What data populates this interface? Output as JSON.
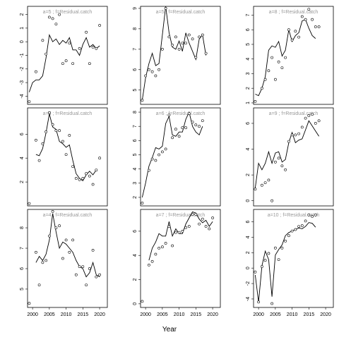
{
  "chart_data": {
    "type": "line",
    "xlabel": "Year",
    "xticks": [
      2000,
      2005,
      2010,
      2015,
      2020
    ],
    "panels": [
      {
        "label": "a=5 ; f=Residual.catch",
        "ylim": [
          -4.6,
          2.6
        ],
        "yticks": [
          -4,
          -3,
          -2,
          -1,
          0,
          1,
          2
        ],
        "x": [
          1999,
          2000,
          2001,
          2002,
          2003,
          2004,
          2005,
          2006,
          2007,
          2008,
          2009,
          2010,
          2011,
          2012,
          2013,
          2014,
          2015,
          2016,
          2017,
          2018,
          2019,
          2020,
          2021
        ],
        "obs": [
          -4.4,
          null,
          -2.2,
          null,
          0.1,
          -0.9,
          1.8,
          1.7,
          1.3,
          2.0,
          -1.6,
          -1.4,
          -0.1,
          -1.6,
          null,
          -0.5,
          null,
          0.7,
          -1.6,
          -0.4,
          -0.5,
          1.2,
          null
        ],
        "fit": [
          -3.7,
          -3.0,
          -2.8,
          -2.8,
          -2.5,
          -1.2,
          0.5,
          0.0,
          0.2,
          -0.2,
          0.1,
          -0.1,
          0.3,
          -0.6,
          -0.6,
          -1.0,
          -0.2,
          0.3,
          -0.4,
          -0.2,
          -0.5,
          -0.3,
          null
        ]
      },
      {
        "label": "a=5 ; f=Residual.catch",
        "ylim": [
          4.3,
          9.1
        ],
        "yticks": [
          5,
          6,
          7,
          8,
          9
        ],
        "x": [
          1999,
          2000,
          2001,
          2002,
          2003,
          2004,
          2005,
          2006,
          2007,
          2008,
          2009,
          2010,
          2011,
          2012,
          2013,
          2014,
          2015,
          2016,
          2017,
          2018,
          2019,
          2020,
          2021
        ],
        "obs": [
          4.5,
          5.7,
          6.0,
          5.9,
          5.7,
          6.0,
          7.0,
          9.0,
          7.6,
          7.2,
          7.6,
          7.0,
          7.3,
          7.3,
          7.7,
          7.5,
          6.6,
          7.6,
          7.7,
          6.8,
          null,
          null,
          null
        ],
        "fit": [
          4.5,
          5.6,
          6.3,
          6.8,
          6.2,
          6.3,
          7.7,
          9.1,
          7.8,
          7.1,
          7.0,
          7.4,
          6.9,
          7.8,
          7.3,
          6.9,
          6.5,
          7.5,
          7.7,
          6.7,
          null,
          null,
          null
        ]
      },
      {
        "label": "a=8 ; f=Residual.catch",
        "ylim": [
          0.9,
          7.6
        ],
        "yticks": [
          1,
          2,
          3,
          4,
          5,
          6,
          7
        ],
        "x": [
          1999,
          2000,
          2001,
          2002,
          2003,
          2004,
          2005,
          2006,
          2007,
          2008,
          2009,
          2010,
          2011,
          2012,
          2013,
          2014,
          2015,
          2016,
          2017,
          2018,
          2019,
          2020,
          2021
        ],
        "obs": [
          1.1,
          null,
          2.0,
          2.6,
          3.2,
          4.1,
          2.6,
          3.8,
          3.4,
          4.1,
          6.0,
          5.3,
          5.9,
          5.5,
          6.9,
          6.7,
          7.4,
          6.7,
          6.2,
          6.2,
          null,
          null,
          null
        ],
        "fit": [
          1.6,
          1.5,
          2.0,
          2.8,
          4.6,
          4.9,
          4.8,
          5.2,
          4.2,
          4.6,
          6.0,
          5.2,
          5.6,
          5.8,
          6.6,
          6.7,
          6.1,
          5.6,
          5.4,
          null,
          null,
          null,
          null
        ]
      },
      {
        "label": "a=4 ; f=Residual.catch",
        "ylim": [
          0.0,
          8.2
        ],
        "yticks": [
          2,
          4,
          6
        ],
        "x": [
          1999,
          2000,
          2001,
          2002,
          2003,
          2004,
          2005,
          2006,
          2007,
          2008,
          2009,
          2010,
          2011,
          2012,
          2013,
          2014,
          2015,
          2016,
          2017,
          2018,
          2019,
          2020,
          2021
        ],
        "obs": [
          0.2,
          null,
          5.5,
          3.8,
          5.2,
          6.2,
          7.8,
          6.8,
          6.3,
          6.3,
          5.4,
          4.3,
          5.9,
          3.3,
          2.3,
          2.2,
          2.3,
          2.7,
          2.5,
          1.8,
          3.0,
          4.0,
          null
        ],
        "fit": [
          1.9,
          null,
          4.3,
          4.2,
          4.8,
          6.1,
          7.7,
          6.6,
          6.4,
          5.4,
          5.2,
          4.9,
          5.1,
          3.8,
          2.7,
          2.3,
          2.1,
          2.6,
          2.9,
          2.6,
          3.0,
          null,
          null
        ]
      },
      {
        "label": "a=6 ; f=Residual.catch",
        "ylim": [
          1.4,
          8.3
        ],
        "yticks": [
          2,
          3,
          4,
          5,
          6,
          7,
          8
        ],
        "x": [
          1999,
          2000,
          2001,
          2002,
          2003,
          2004,
          2005,
          2006,
          2007,
          2008,
          2009,
          2010,
          2011,
          2012,
          2013,
          2014,
          2015,
          2016,
          2017,
          2018,
          2019,
          2020,
          2021
        ],
        "obs": [
          1.6,
          null,
          3.9,
          4.7,
          4.6,
          5.0,
          5.2,
          5.4,
          7.8,
          6.2,
          6.8,
          6.3,
          6.9,
          6.9,
          7.9,
          7.3,
          7.1,
          7.0,
          7.4,
          null,
          null,
          null,
          null
        ],
        "fit": [
          2.0,
          3.0,
          4.2,
          4.8,
          5.5,
          5.4,
          5.6,
          7.2,
          7.7,
          6.4,
          6.3,
          6.6,
          6.6,
          7.5,
          8.0,
          7.0,
          6.6,
          6.4,
          7.0,
          null,
          null,
          null,
          null
        ]
      },
      {
        "label": "a=9 ; f=Residual.catch",
        "ylim": [
          -0.4,
          7.2
        ],
        "yticks": [
          0,
          2,
          4,
          6
        ],
        "x": [
          1999,
          2000,
          2001,
          2002,
          2003,
          2004,
          2005,
          2006,
          2007,
          2008,
          2009,
          2010,
          2011,
          2012,
          2013,
          2014,
          2015,
          2016,
          2017,
          2018,
          2019,
          2020,
          2021
        ],
        "obs": [
          0.9,
          null,
          1.2,
          1.4,
          1.6,
          0.0,
          3.0,
          3.3,
          2.7,
          2.4,
          4.6,
          5.1,
          5.1,
          5.2,
          5.7,
          6.4,
          6.6,
          6.7,
          6.0,
          6.2,
          null,
          null,
          null
        ],
        "fit": [
          1.0,
          2.9,
          2.4,
          2.9,
          3.8,
          2.9,
          3.7,
          3.8,
          3.0,
          3.2,
          4.5,
          5.3,
          4.5,
          4.7,
          4.8,
          5.5,
          6.2,
          5.8,
          5.4,
          5.0,
          null,
          null,
          null
        ]
      },
      {
        "label": "a=4 ; f=Residual.catch",
        "ylim": [
          4.1,
          8.9
        ],
        "yticks": [
          5,
          6,
          7,
          8
        ],
        "x": [
          1999,
          2000,
          2001,
          2002,
          2003,
          2004,
          2005,
          2006,
          2007,
          2008,
          2009,
          2010,
          2011,
          2012,
          2013,
          2014,
          2015,
          2016,
          2017,
          2018,
          2019,
          2020,
          2021
        ],
        "obs": [
          4.3,
          null,
          6.8,
          5.2,
          6.3,
          6.4,
          7.6,
          8.8,
          8.0,
          8.1,
          6.5,
          7.4,
          6.8,
          7.4,
          5.7,
          6.1,
          6.1,
          5.2,
          6.0,
          6.9,
          5.6,
          5.7,
          null
        ],
        "fit": [
          4.9,
          null,
          6.3,
          6.6,
          6.4,
          6.7,
          7.4,
          8.7,
          7.8,
          7.0,
          7.3,
          7.2,
          7.0,
          6.8,
          6.4,
          6.1,
          6.0,
          5.6,
          5.8,
          6.3,
          5.7,
          5.6,
          null
        ],
        "fit_note": ""
      },
      {
        "label": "a=7 ; f=Residual.catch",
        "ylim": [
          -0.3,
          7.8
        ],
        "yticks": [
          0,
          2,
          4,
          6
        ],
        "x": [
          1999,
          2000,
          2001,
          2002,
          2003,
          2004,
          2005,
          2006,
          2007,
          2008,
          2009,
          2010,
          2011,
          2012,
          2013,
          2014,
          2015,
          2016,
          2017,
          2018,
          2019,
          2020,
          2021
        ],
        "obs": [
          0.2,
          null,
          3.2,
          3.5,
          4.1,
          4.6,
          4.7,
          5.0,
          6.4,
          4.8,
          5.9,
          5.9,
          6.0,
          6.3,
          6.4,
          7.4,
          7.4,
          6.6,
          7.0,
          6.4,
          6.2,
          7.1,
          null
        ],
        "fit": [
          0.9,
          null,
          3.6,
          4.6,
          5.1,
          5.8,
          5.6,
          5.6,
          6.8,
          5.6,
          6.2,
          5.8,
          5.8,
          6.6,
          7.1,
          7.6,
          7.5,
          7.0,
          6.7,
          6.9,
          6.4,
          6.8,
          null
        ]
      },
      {
        "label": "a=10 ; f=Residual.catch",
        "ylim": [
          -5.1,
          7.6
        ],
        "yticks": [
          -4,
          -2,
          0,
          2,
          4,
          6
        ],
        "x": [
          1999,
          2000,
          2001,
          2002,
          2003,
          2004,
          2005,
          2006,
          2007,
          2008,
          2009,
          2010,
          2011,
          2012,
          2013,
          2014,
          2015,
          2016,
          2017,
          2018,
          2019,
          2020,
          2021
        ],
        "obs": [
          -0.5,
          -4.4,
          0.2,
          1.0,
          1.9,
          -4.6,
          2.6,
          1.1,
          2.6,
          3.5,
          4.2,
          4.8,
          5.0,
          5.4,
          5.5,
          6.1,
          6.9,
          6.7,
          6.9,
          null,
          null,
          null,
          null
        ],
        "fit": [
          -0.9,
          -4.4,
          0.3,
          2.2,
          1.1,
          -3.7,
          1.7,
          2.4,
          3.0,
          4.2,
          4.6,
          4.8,
          5.0,
          5.2,
          5.1,
          5.4,
          5.9,
          5.8,
          5.3,
          null,
          null,
          null,
          null
        ]
      }
    ]
  }
}
